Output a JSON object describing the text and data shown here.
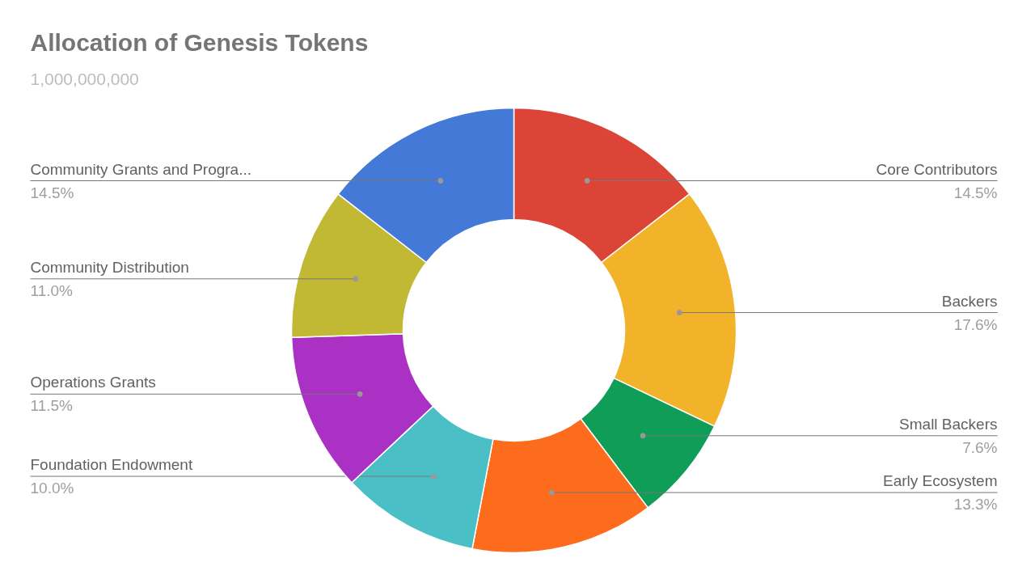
{
  "chart_data": {
    "type": "donut",
    "title": "Allocation of Genesis Tokens",
    "subtitle": "1,000,000,000",
    "categories": [
      "Core Contributors",
      "Backers",
      "Small Backers",
      "Early Ecosystem",
      "Foundation Endowment",
      "Operations Grants",
      "Community Distribution",
      "Community Grants and Progra..."
    ],
    "values": [
      14.5,
      17.6,
      7.6,
      13.3,
      10.0,
      11.5,
      11.0,
      14.5
    ],
    "value_labels": [
      "14.5%",
      "17.6%",
      "7.6%",
      "13.3%",
      "10.0%",
      "11.5%",
      "11.0%",
      "14.5%"
    ],
    "colors": [
      "#db4437",
      "#f2b32b",
      "#0f9d58",
      "#fd6b1c",
      "#4bbfc6",
      "#ab30c4",
      "#c1b934",
      "#4479d7"
    ]
  }
}
